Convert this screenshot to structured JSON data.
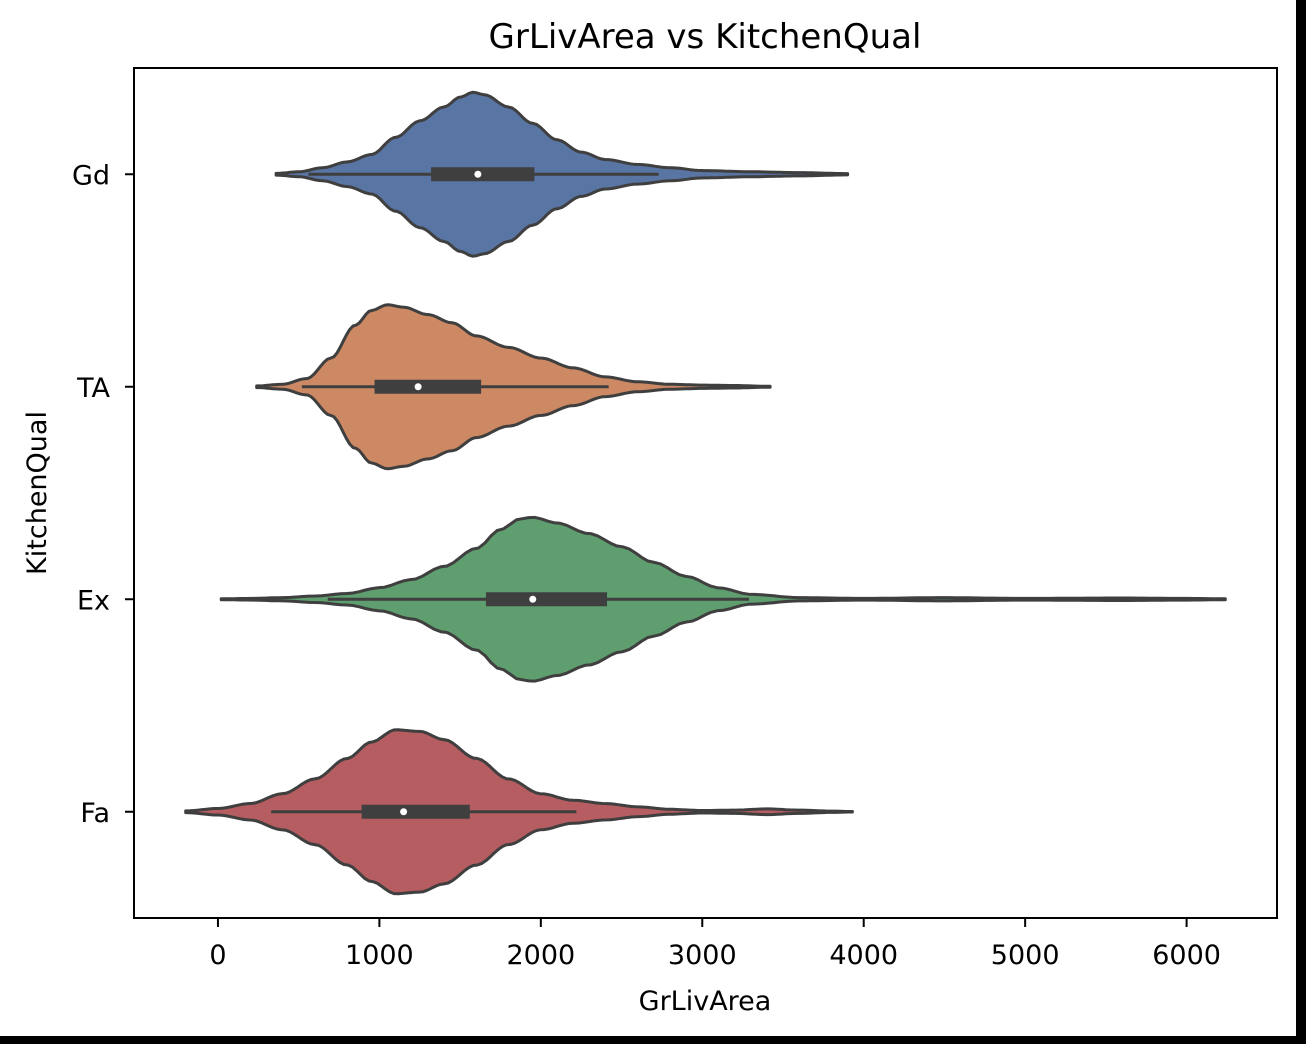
{
  "chart_data": {
    "type": "violin",
    "orientation": "horizontal",
    "title": "GrLivArea vs KitchenQual",
    "xlabel": "GrLivArea",
    "ylabel": "KitchenQual",
    "xlim": [
      -520,
      6560
    ],
    "xticks": [
      0,
      1000,
      2000,
      3000,
      4000,
      5000,
      6000
    ],
    "xtick_labels": [
      "0",
      "1000",
      "2000",
      "3000",
      "4000",
      "5000",
      "6000"
    ],
    "categories": [
      "Gd",
      "TA",
      "Ex",
      "Fa"
    ],
    "grid": false,
    "legend": "none",
    "series": [
      {
        "name": "Gd",
        "color": "#5975a4",
        "q1": 1320,
        "median": 1610,
        "q3": 1960,
        "whisker_low": 560,
        "whisker_high": 2730,
        "density": [
          [
            360,
            0.01
          ],
          [
            500,
            0.03
          ],
          [
            650,
            0.08
          ],
          [
            800,
            0.15
          ],
          [
            950,
            0.24
          ],
          [
            1100,
            0.45
          ],
          [
            1250,
            0.65
          ],
          [
            1400,
            0.82
          ],
          [
            1500,
            0.94
          ],
          [
            1580,
            1.0
          ],
          [
            1650,
            0.97
          ],
          [
            1800,
            0.82
          ],
          [
            1950,
            0.62
          ],
          [
            2100,
            0.42
          ],
          [
            2250,
            0.27
          ],
          [
            2400,
            0.18
          ],
          [
            2600,
            0.12
          ],
          [
            2800,
            0.08
          ],
          [
            3000,
            0.045
          ],
          [
            3300,
            0.03
          ],
          [
            3600,
            0.02
          ],
          [
            3900,
            0.008
          ]
        ]
      },
      {
        "name": "TA",
        "color": "#cc8963",
        "q1": 970,
        "median": 1240,
        "q3": 1630,
        "whisker_low": 520,
        "whisker_high": 2420,
        "density": [
          [
            240,
            0.01
          ],
          [
            400,
            0.03
          ],
          [
            550,
            0.1
          ],
          [
            700,
            0.35
          ],
          [
            850,
            0.75
          ],
          [
            950,
            0.93
          ],
          [
            1050,
            1.0
          ],
          [
            1150,
            0.97
          ],
          [
            1300,
            0.88
          ],
          [
            1450,
            0.78
          ],
          [
            1600,
            0.62
          ],
          [
            1800,
            0.48
          ],
          [
            2000,
            0.35
          ],
          [
            2200,
            0.23
          ],
          [
            2400,
            0.12
          ],
          [
            2600,
            0.06
          ],
          [
            2800,
            0.03
          ],
          [
            3000,
            0.02
          ],
          [
            3200,
            0.015
          ],
          [
            3420,
            0.005
          ]
        ]
      },
      {
        "name": "Ex",
        "color": "#5f9e6e",
        "q1": 1660,
        "median": 1950,
        "q3": 2410,
        "whisker_low": 680,
        "whisker_high": 3290,
        "density": [
          [
            20,
            0.005
          ],
          [
            200,
            0.01
          ],
          [
            400,
            0.02
          ],
          [
            600,
            0.04
          ],
          [
            800,
            0.07
          ],
          [
            1000,
            0.14
          ],
          [
            1200,
            0.24
          ],
          [
            1400,
            0.4
          ],
          [
            1600,
            0.62
          ],
          [
            1750,
            0.85
          ],
          [
            1870,
            0.98
          ],
          [
            1950,
            1.0
          ],
          [
            2100,
            0.93
          ],
          [
            2300,
            0.8
          ],
          [
            2500,
            0.64
          ],
          [
            2700,
            0.45
          ],
          [
            2900,
            0.28
          ],
          [
            3100,
            0.14
          ],
          [
            3300,
            0.06
          ],
          [
            3600,
            0.02
          ],
          [
            4000,
            0.01
          ],
          [
            4500,
            0.02
          ],
          [
            5000,
            0.01
          ],
          [
            5600,
            0.015
          ],
          [
            6000,
            0.01
          ],
          [
            6240,
            0.005
          ]
        ]
      },
      {
        "name": "Fa",
        "color": "#b55d60",
        "q1": 890,
        "median": 1150,
        "q3": 1560,
        "whisker_low": 330,
        "whisker_high": 2220,
        "density": [
          [
            -200,
            0.01
          ],
          [
            0,
            0.04
          ],
          [
            200,
            0.1
          ],
          [
            400,
            0.22
          ],
          [
            600,
            0.4
          ],
          [
            800,
            0.65
          ],
          [
            950,
            0.85
          ],
          [
            1100,
            1.0
          ],
          [
            1250,
            0.98
          ],
          [
            1400,
            0.88
          ],
          [
            1600,
            0.65
          ],
          [
            1800,
            0.4
          ],
          [
            2000,
            0.22
          ],
          [
            2200,
            0.14
          ],
          [
            2400,
            0.1
          ],
          [
            2600,
            0.06
          ],
          [
            2800,
            0.03
          ],
          [
            3000,
            0.015
          ],
          [
            3200,
            0.02
          ],
          [
            3400,
            0.035
          ],
          [
            3600,
            0.02
          ],
          [
            3800,
            0.008
          ],
          [
            3930,
            0.003
          ]
        ]
      }
    ]
  }
}
